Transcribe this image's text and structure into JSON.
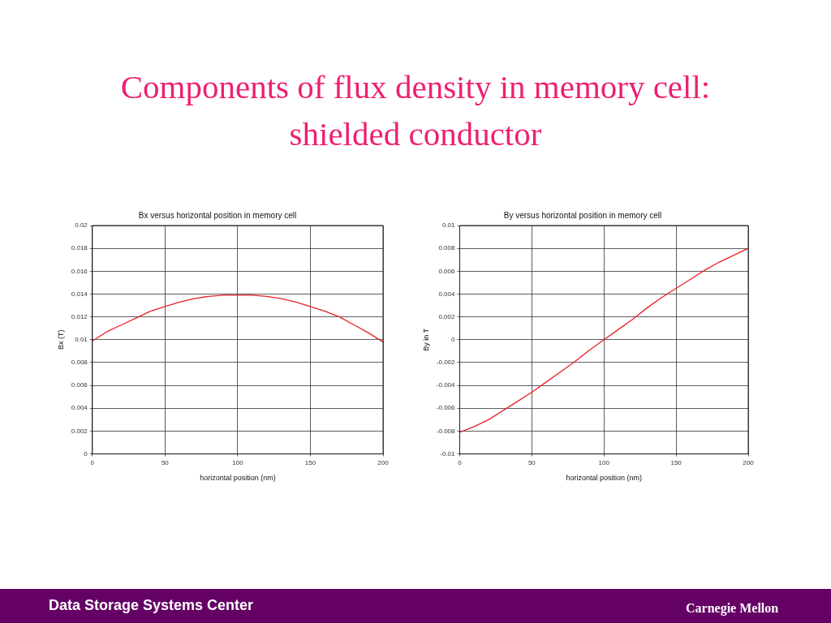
{
  "chart_data": [
    {
      "type": "line",
      "title": "Bx versus horizontal position in memory cell",
      "xlabel": "horizontal position (nm)",
      "ylabel": "Bx (T)",
      "x": [
        0,
        10,
        20,
        30,
        40,
        50,
        60,
        70,
        80,
        90,
        100,
        110,
        120,
        130,
        140,
        150,
        160,
        170,
        180,
        190,
        200
      ],
      "series": [
        {
          "color": "#e8202a",
          "values": [
            0.0099,
            0.0107,
            0.0113,
            0.0119,
            0.0125,
            0.0129,
            0.0133,
            0.0136,
            0.0138,
            0.0139,
            0.0139,
            0.0139,
            0.0138,
            0.0136,
            0.0133,
            0.0129,
            0.0125,
            0.012,
            0.0113,
            0.0106,
            0.0098
          ]
        }
      ],
      "xlim": [
        0,
        200
      ],
      "xticks": [
        0,
        50,
        100,
        150,
        200
      ],
      "ylim": [
        0,
        0.02
      ],
      "yticks": [
        0,
        0.002,
        0.004,
        0.006,
        0.008,
        0.01,
        0.012,
        0.014,
        0.016,
        0.018,
        0.02
      ],
      "grid": true,
      "annotations": [
        "Components of flux density in memory cell: shielded conductor",
        "Data Storage Systems Center",
        "Carnegie Mellon"
      ]
    },
    {
      "type": "line",
      "title": "By versus horizontal position in memory cell",
      "xlabel": "horizontal position (nm)",
      "ylabel": "By in T",
      "x": [
        0,
        10,
        20,
        30,
        40,
        50,
        60,
        70,
        80,
        90,
        100,
        110,
        120,
        130,
        140,
        150,
        160,
        170,
        180,
        190,
        200
      ],
      "series": [
        {
          "color": "#e8202a",
          "values": [
            -0.0081,
            -0.0076,
            -0.007,
            -0.0062,
            -0.0054,
            -0.0046,
            -0.0037,
            -0.0028,
            -0.0019,
            -0.0009,
            0,
            0.0009,
            0.0018,
            0.0028,
            0.0037,
            0.0045,
            0.0053,
            0.0061,
            0.0068,
            0.0074,
            0.008
          ]
        }
      ],
      "xlim": [
        0,
        200
      ],
      "xticks": [
        0,
        50,
        100,
        150,
        200
      ],
      "ylim": [
        -0.01,
        0.01
      ],
      "yticks": [
        -0.01,
        -0.008,
        -0.006,
        -0.004,
        -0.002,
        0,
        0.002,
        0.004,
        0.006,
        0.008,
        0.01
      ],
      "grid": true
    }
  ]
}
